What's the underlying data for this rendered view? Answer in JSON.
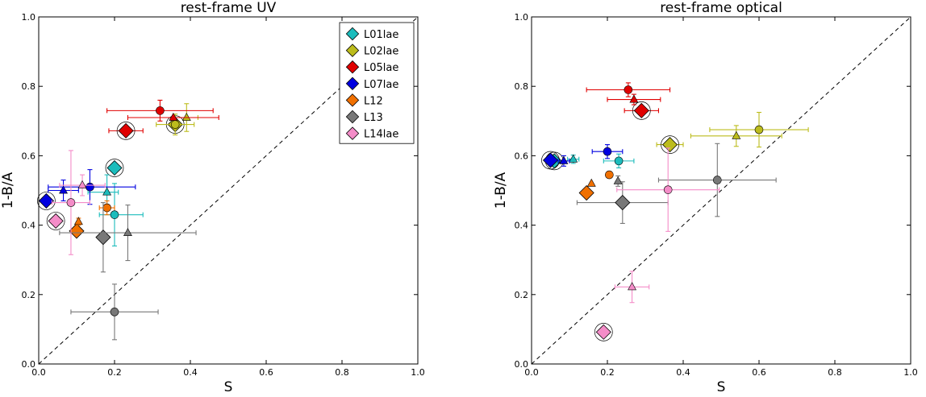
{
  "chart_data": [
    {
      "type": "scatter",
      "title": "rest-frame UV",
      "xlabel": "S",
      "ylabel": "1-B/A",
      "xlim": [
        0,
        1
      ],
      "ylim": [
        0,
        1
      ],
      "xticks": [
        "0.0",
        "0.2",
        "0.4",
        "0.6",
        "0.8",
        "1.0"
      ],
      "yticks": [
        "0.0",
        "0.2",
        "0.4",
        "0.6",
        "0.8",
        "1.0"
      ],
      "reference_line": "y = x (dashed)",
      "legend": {
        "position": "top-right",
        "entries": [
          "L01lae",
          "L02lae",
          "L05lae",
          "L07lae",
          "L12",
          "L13",
          "L14lae"
        ]
      },
      "series": [
        {
          "name": "L01lae",
          "color": "#1cbcbc",
          "points": [
            {
              "marker": "diamond",
              "x": 0.2,
              "y": 0.565,
              "circled": true
            },
            {
              "marker": "triangle",
              "x": 0.18,
              "y": 0.495,
              "xerr": [
                0.05,
                0.03
              ],
              "yerr": [
                0.05,
                0.05
              ]
            },
            {
              "marker": "circle",
              "x": 0.2,
              "y": 0.43,
              "xerr": [
                0.04,
                0.075
              ],
              "yerr": [
                0.09,
                0.09
              ]
            }
          ]
        },
        {
          "name": "L02lae",
          "color": "#bcbc1c",
          "points": [
            {
              "marker": "diamond",
              "x": 0.36,
              "y": 0.69,
              "circled": true
            },
            {
              "marker": "triangle",
              "x": 0.39,
              "y": 0.71,
              "xerr": [
                0.03,
                0.03
              ],
              "yerr": [
                0.04,
                0.04
              ]
            },
            {
              "marker": "circle",
              "x": 0.36,
              "y": 0.69,
              "xerr": [
                0.05,
                0.05
              ],
              "yerr": [
                0.03,
                0.03
              ]
            }
          ]
        },
        {
          "name": "L05lae",
          "color": "#e00000",
          "points": [
            {
              "marker": "diamond",
              "x": 0.23,
              "y": 0.672,
              "circled": true,
              "xerr": [
                0.045,
                0.045
              ]
            },
            {
              "marker": "circle",
              "x": 0.32,
              "y": 0.73,
              "xerr": [
                0.14,
                0.14
              ],
              "yerr": [
                0.03,
                0.03
              ]
            },
            {
              "marker": "triangle",
              "x": 0.355,
              "y": 0.71,
              "xerr": [
                0.12,
                0.12
              ]
            }
          ]
        },
        {
          "name": "L07lae",
          "color": "#0000e0",
          "points": [
            {
              "marker": "diamond",
              "x": 0.02,
              "y": 0.47,
              "circled": true
            },
            {
              "marker": "triangle",
              "x": 0.065,
              "y": 0.5,
              "xerr": [
                0.04,
                0.04
              ],
              "yerr": [
                0.03,
                0.03
              ]
            },
            {
              "marker": "circle",
              "x": 0.135,
              "y": 0.51,
              "xerr": [
                0.11,
                0.12
              ],
              "yerr": [
                0.05,
                0.05
              ]
            }
          ]
        },
        {
          "name": "L12",
          "color": "#f07000",
          "points": [
            {
              "marker": "diamond",
              "x": 0.1,
              "y": 0.383
            },
            {
              "marker": "triangle",
              "x": 0.105,
              "y": 0.41,
              "yerr": [
                0.01,
                0.01
              ]
            },
            {
              "marker": "circle",
              "x": 0.18,
              "y": 0.45,
              "xerr": [
                0.02,
                0.02
              ],
              "yerr": [
                0.02,
                0.02
              ]
            }
          ]
        },
        {
          "name": "L13",
          "color": "#787878",
          "points": [
            {
              "marker": "diamond",
              "x": 0.17,
              "y": 0.365,
              "yerr": [
                0.1,
                0.1
              ]
            },
            {
              "marker": "triangle",
              "x": 0.235,
              "y": 0.378,
              "xerr": [
                0.18,
                0.18
              ],
              "yerr": [
                0.08,
                0.08
              ]
            },
            {
              "marker": "circle",
              "x": 0.2,
              "y": 0.15,
              "xerr": [
                0.115,
                0.115
              ],
              "yerr": [
                0.08,
                0.08
              ]
            }
          ]
        },
        {
          "name": "L14lae",
          "color": "#f48cc8",
          "points": [
            {
              "marker": "diamond",
              "x": 0.045,
              "y": 0.412,
              "circled": true
            },
            {
              "marker": "triangle",
              "x": 0.115,
              "y": 0.515,
              "xerr": [
                0.06,
                0.06
              ],
              "yerr": [
                0.03,
                0.03
              ]
            },
            {
              "marker": "circle",
              "x": 0.085,
              "y": 0.465,
              "xerr": [
                0.05,
                0.05
              ],
              "yerr": [
                0.15,
                0.15
              ]
            }
          ]
        }
      ]
    },
    {
      "type": "scatter",
      "title": "rest-frame optical",
      "xlabel": "S",
      "ylabel": "1-B/A",
      "xlim": [
        0,
        1
      ],
      "ylim": [
        0,
        1
      ],
      "xticks": [
        "0.0",
        "0.2",
        "0.4",
        "0.6",
        "0.8",
        "1.0"
      ],
      "yticks": [
        "0.0",
        "0.2",
        "0.4",
        "0.6",
        "0.8",
        "1.0"
      ],
      "reference_line": "y = x (dashed)",
      "series": [
        {
          "name": "L01lae",
          "color": "#1cbcbc",
          "points": [
            {
              "marker": "diamond",
              "x": 0.06,
              "y": 0.585,
              "circled": true
            },
            {
              "marker": "triangle",
              "x": 0.11,
              "y": 0.59,
              "xerr": [
                0.015,
                0.015
              ],
              "yerr": [
                0.012,
                0.012
              ]
            },
            {
              "marker": "circle",
              "x": 0.23,
              "y": 0.585,
              "xerr": [
                0.04,
                0.04
              ],
              "yerr": [
                0.02,
                0.02
              ]
            }
          ]
        },
        {
          "name": "L02lae",
          "color": "#bcbc1c",
          "points": [
            {
              "marker": "diamond",
              "x": 0.365,
              "y": 0.632,
              "circled": true,
              "xerr": [
                0.035,
                0.035
              ]
            },
            {
              "marker": "triangle",
              "x": 0.54,
              "y": 0.657,
              "xerr": [
                0.12,
                0.12
              ],
              "yerr": [
                0.03,
                0.03
              ]
            },
            {
              "marker": "circle",
              "x": 0.6,
              "y": 0.675,
              "xerr": [
                0.13,
                0.13
              ],
              "yerr": [
                0.05,
                0.05
              ]
            }
          ]
        },
        {
          "name": "L05lae",
          "color": "#e00000",
          "points": [
            {
              "marker": "diamond",
              "x": 0.29,
              "y": 0.73,
              "circled": true,
              "xerr": [
                0.045,
                0.045
              ]
            },
            {
              "marker": "triangle",
              "x": 0.27,
              "y": 0.762,
              "xerr": [
                0.07,
                0.07
              ],
              "yerr": [
                0.015,
                0.015
              ]
            },
            {
              "marker": "circle",
              "x": 0.255,
              "y": 0.79,
              "xerr": [
                0.11,
                0.11
              ],
              "yerr": [
                0.02,
                0.02
              ]
            }
          ]
        },
        {
          "name": "L07lae",
          "color": "#0000e0",
          "points": [
            {
              "marker": "diamond",
              "x": 0.05,
              "y": 0.587,
              "circled": true
            },
            {
              "marker": "triangle",
              "x": 0.085,
              "y": 0.585,
              "xerr": [
                0.015,
                0.015
              ],
              "yerr": [
                0.015,
                0.015
              ]
            },
            {
              "marker": "circle",
              "x": 0.2,
              "y": 0.612,
              "xerr": [
                0.04,
                0.04
              ],
              "yerr": [
                0.02,
                0.02
              ]
            }
          ]
        },
        {
          "name": "L12",
          "color": "#f07000",
          "points": [
            {
              "marker": "diamond",
              "x": 0.145,
              "y": 0.493
            },
            {
              "marker": "triangle",
              "x": 0.158,
              "y": 0.52
            },
            {
              "marker": "circle",
              "x": 0.205,
              "y": 0.545
            }
          ]
        },
        {
          "name": "L13",
          "color": "#787878",
          "points": [
            {
              "marker": "diamond",
              "x": 0.24,
              "y": 0.465,
              "xerr": [
                0.12,
                0.12
              ],
              "yerr": [
                0.06,
                0.06
              ]
            },
            {
              "marker": "triangle",
              "x": 0.228,
              "y": 0.527,
              "yerr": [
                0.015,
                0.015
              ]
            },
            {
              "marker": "circle",
              "x": 0.49,
              "y": 0.53,
              "xerr": [
                0.155,
                0.155
              ],
              "yerr": [
                0.105,
                0.105
              ]
            }
          ]
        },
        {
          "name": "L14lae",
          "color": "#f48cc8",
          "points": [
            {
              "marker": "diamond",
              "x": 0.19,
              "y": 0.092,
              "circled": true
            },
            {
              "marker": "triangle",
              "x": 0.265,
              "y": 0.222,
              "xerr": [
                0.045,
                0.045
              ],
              "yerr": [
                0.045,
                0.045
              ]
            },
            {
              "marker": "circle",
              "x": 0.36,
              "y": 0.502,
              "xerr": [
                0.135,
                0.135
              ],
              "yerr": [
                0.12,
                0.12
              ]
            }
          ]
        }
      ]
    }
  ]
}
